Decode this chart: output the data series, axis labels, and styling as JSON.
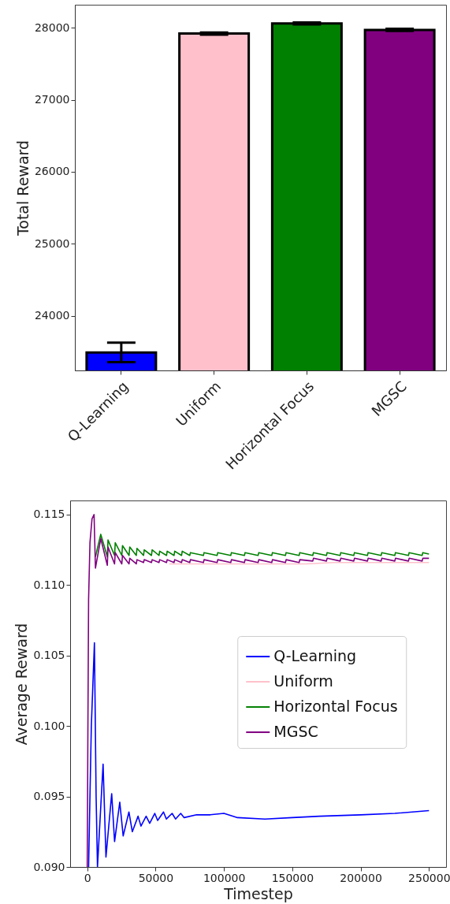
{
  "chart_data": [
    {
      "type": "bar",
      "categories": [
        "Q-Learning",
        "Uniform",
        "Horizontal Focus",
        "MGSC"
      ],
      "values": [
        23490,
        27920,
        28060,
        27970
      ],
      "colors": [
        "#0000ff",
        "#ffc0cb",
        "#008000",
        "#800080"
      ],
      "errors": [
        135,
        15,
        15,
        15
      ],
      "ylabel": "Total Reward",
      "ylim": [
        23240,
        28320
      ],
      "yticks": [
        24000,
        25000,
        26000,
        27000,
        28000
      ],
      "grid": false
    },
    {
      "type": "line",
      "xlabel": "Timestep",
      "ylabel": "Average Reward",
      "xlim": [
        -12500,
        262500
      ],
      "xticks": [
        0,
        50000,
        100000,
        150000,
        200000,
        250000
      ],
      "ylim": [
        0.09,
        0.116
      ],
      "yticks": [
        {
          "value": 0.09,
          "label": "0.090"
        },
        {
          "value": 0.095,
          "label": "0.095"
        },
        {
          "value": 0.1,
          "label": "0.100"
        },
        {
          "value": 0.105,
          "label": "0.105"
        },
        {
          "value": 0.11,
          "label": "0.110"
        },
        {
          "value": 0.115,
          "label": "0.115"
        }
      ],
      "grid": false,
      "legend": "right",
      "series": [
        {
          "name": "Q-Learning",
          "color": "#0000ff",
          "x": [
            1000,
            3000,
            5260,
            6500,
            7500,
            11600,
            13700,
            17900,
            20000,
            23800,
            26300,
            30500,
            33000,
            37200,
            39300,
            43100,
            45700,
            49400,
            51500,
            55800,
            57900,
            62100,
            64600,
            68400,
            70900,
            80000,
            90000,
            100000,
            110000,
            130000,
            150000,
            170000,
            200000,
            225000,
            250000
          ],
          "values": [
            0.09,
            0.1,
            0.1059,
            0.095,
            0.09,
            0.0973,
            0.0907,
            0.0952,
            0.0918,
            0.0946,
            0.0922,
            0.0939,
            0.0925,
            0.0936,
            0.0929,
            0.0936,
            0.0931,
            0.0938,
            0.0933,
            0.0939,
            0.0934,
            0.0938,
            0.0934,
            0.0938,
            0.0935,
            0.0937,
            0.0937,
            0.0938,
            0.0935,
            0.0934,
            0.0935,
            0.0936,
            0.0937,
            0.0938,
            0.094
          ]
        },
        {
          "name": "Uniform",
          "color": "#ffc0cb",
          "x": [
            60000,
            80000,
            100000,
            120000,
            140000,
            160000,
            180000,
            200000,
            220000,
            240000,
            250000
          ],
          "values": [
            0.1115,
            0.1115,
            0.1115,
            0.1115,
            0.1115,
            0.1115,
            0.1116,
            0.1116,
            0.1116,
            0.1116,
            0.1116
          ]
        },
        {
          "name": "Horizontal Focus",
          "color": "#008000",
          "x": [
            6000,
            9900,
            14700,
            15200,
            20000,
            20500,
            25300,
            25800,
            30600,
            31100,
            35900,
            36400,
            41200,
            41700,
            47000,
            47500,
            52500,
            53000,
            58000,
            58500,
            63500,
            64000,
            69000,
            69500,
            75000,
            75500,
            85000,
            85500,
            95000,
            95500,
            105000,
            105500,
            115000,
            115500,
            125000,
            125500,
            135000,
            135500,
            145000,
            145500,
            155000,
            155500,
            165000,
            165500,
            175000,
            175500,
            185000,
            185500,
            195000,
            195500,
            205000,
            205500,
            215000,
            215500,
            225000,
            225500,
            235000,
            235500,
            245000,
            245500,
            250000
          ],
          "values": [
            0.112,
            0.1136,
            0.112,
            0.1132,
            0.1121,
            0.113,
            0.1121,
            0.1128,
            0.1121,
            0.1127,
            0.1121,
            0.1126,
            0.1121,
            0.1125,
            0.1121,
            0.1125,
            0.1121,
            0.1124,
            0.1121,
            0.1124,
            0.1121,
            0.1124,
            0.1121,
            0.1124,
            0.1121,
            0.1123,
            0.1121,
            0.1123,
            0.1121,
            0.1123,
            0.1121,
            0.1123,
            0.1121,
            0.1123,
            0.1121,
            0.1123,
            0.1121,
            0.1123,
            0.1121,
            0.1123,
            0.1121,
            0.1123,
            0.1121,
            0.1123,
            0.1121,
            0.1123,
            0.1121,
            0.1123,
            0.1121,
            0.1123,
            0.1121,
            0.1123,
            0.1121,
            0.1123,
            0.1121,
            0.1123,
            0.1121,
            0.1123,
            0.1121,
            0.1123,
            0.1122
          ]
        },
        {
          "name": "MGSC",
          "color": "#800080",
          "x": [
            0,
            500,
            1000,
            2000,
            3500,
            5000,
            6000,
            9900,
            14700,
            15200,
            20000,
            20500,
            25300,
            25800,
            30600,
            31100,
            35900,
            36400,
            41200,
            41700,
            47000,
            47500,
            52500,
            53000,
            58000,
            58500,
            63500,
            64000,
            69000,
            69500,
            75000,
            75500,
            85000,
            85500,
            95000,
            95500,
            105000,
            105500,
            115000,
            115500,
            125000,
            125500,
            135000,
            135500,
            145000,
            145500,
            155000,
            155500,
            165000,
            165500,
            175000,
            175500,
            185000,
            185500,
            195000,
            195500,
            205000,
            205500,
            215000,
            215500,
            225000,
            225500,
            235000,
            235500,
            245000,
            245500,
            250000
          ],
          "values": [
            0.09,
            0.1,
            0.109,
            0.113,
            0.1147,
            0.115,
            0.1112,
            0.1133,
            0.1114,
            0.1127,
            0.1115,
            0.1123,
            0.1115,
            0.1121,
            0.1115,
            0.1119,
            0.1115,
            0.1118,
            0.1116,
            0.1118,
            0.1116,
            0.1118,
            0.1116,
            0.1118,
            0.1116,
            0.1118,
            0.1116,
            0.1118,
            0.1116,
            0.1118,
            0.1116,
            0.1118,
            0.1116,
            0.1118,
            0.1116,
            0.1118,
            0.1116,
            0.1118,
            0.1116,
            0.1118,
            0.1116,
            0.1118,
            0.1116,
            0.1118,
            0.1116,
            0.1118,
            0.1116,
            0.1118,
            0.1117,
            0.1119,
            0.1117,
            0.1119,
            0.1117,
            0.1119,
            0.1117,
            0.1119,
            0.1117,
            0.1119,
            0.1117,
            0.1119,
            0.1117,
            0.1119,
            0.1117,
            0.1119,
            0.1117,
            0.1119,
            0.1119
          ]
        }
      ]
    }
  ]
}
